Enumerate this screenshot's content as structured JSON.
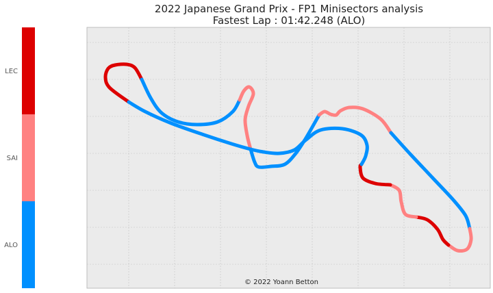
{
  "chart_data": {
    "type": "scatter",
    "title": "2022 Japanese Grand Prix - FP1 Minisectors analysis",
    "subtitle": "Fastest Lap : 01:42.248 (ALO)",
    "credit": "© 2022 Yoann Betton",
    "grid": true,
    "axes_visible": false,
    "colorbar": {
      "labels": [
        "LEC",
        "SAI",
        "ALO"
      ],
      "colors": [
        "#dd0000",
        "#ff8181",
        "#0090ff"
      ]
    },
    "track_segments": [
      {
        "driver": "LEC",
        "points": [
          [
            188,
            149
          ],
          [
            160,
            128
          ],
          [
            154,
            113
          ],
          [
            158,
            100
          ],
          [
            168,
            95
          ],
          [
            185,
            94
          ],
          [
            197,
            99
          ],
          [
            207,
            116
          ]
        ]
      },
      {
        "driver": "ALO",
        "points": [
          [
            207,
            116
          ],
          [
            220,
            143
          ],
          [
            236,
            165
          ],
          [
            260,
            178
          ],
          [
            288,
            182
          ],
          [
            318,
            178
          ],
          [
            340,
            163
          ],
          [
            350,
            146
          ]
        ]
      },
      {
        "driver": "SAI",
        "points": [
          [
            350,
            146
          ],
          [
            356,
            133
          ],
          [
            364,
            127
          ],
          [
            370,
            137
          ],
          [
            363,
            155
          ],
          [
            358,
            175
          ],
          [
            361,
            198
          ],
          [
            366,
            218
          ]
        ]
      },
      {
        "driver": "ALO",
        "points": [
          [
            366,
            218
          ],
          [
            372,
            237
          ],
          [
            378,
            244
          ],
          [
            396,
            243
          ],
          [
            416,
            240
          ],
          [
            432,
            224
          ],
          [
            446,
            203
          ],
          [
            466,
            168
          ]
        ]
      },
      {
        "driver": "SAI",
        "points": [
          [
            466,
            168
          ],
          [
            474,
            163
          ],
          [
            483,
            167
          ],
          [
            491,
            168
          ],
          [
            497,
            162
          ],
          [
            510,
            157
          ],
          [
            530,
            159
          ],
          [
            556,
            174
          ],
          [
            571,
            194
          ]
        ]
      },
      {
        "driver": "ALO",
        "points": [
          [
            571,
            194
          ],
          [
            600,
            226
          ],
          [
            632,
            260
          ],
          [
            662,
            292
          ],
          [
            680,
            315
          ],
          [
            686,
            334
          ]
        ]
      },
      {
        "driver": "SAI",
        "points": [
          [
            686,
            334
          ],
          [
            688,
            350
          ],
          [
            682,
            364
          ],
          [
            668,
            366
          ],
          [
            655,
            358
          ]
        ]
      },
      {
        "driver": "LEC",
        "points": [
          [
            655,
            358
          ],
          [
            647,
            350
          ],
          [
            639,
            335
          ],
          [
            624,
            321
          ],
          [
            608,
            317
          ]
        ]
      },
      {
        "driver": "SAI",
        "points": [
          [
            608,
            317
          ],
          [
            592,
            313
          ],
          [
            586,
            295
          ],
          [
            583,
            278
          ],
          [
            570,
            270
          ]
        ]
      },
      {
        "driver": "LEC",
        "points": [
          [
            570,
            270
          ],
          [
            548,
            268
          ],
          [
            530,
            260
          ],
          [
            526,
            244
          ],
          [
            528,
            240
          ]
        ]
      },
      {
        "driver": "ALO",
        "points": [
          [
            528,
            240
          ],
          [
            534,
            228
          ],
          [
            536,
            212
          ],
          [
            527,
            197
          ],
          [
            500,
            188
          ],
          [
            468,
            190
          ],
          [
            446,
            205
          ],
          [
            430,
            219
          ],
          [
            408,
            224
          ],
          [
            385,
            222
          ],
          [
            366,
            218
          ],
          [
            338,
            210
          ],
          [
            298,
            197
          ],
          [
            250,
            180
          ],
          [
            212,
            163
          ],
          [
            188,
            149
          ]
        ]
      }
    ]
  }
}
